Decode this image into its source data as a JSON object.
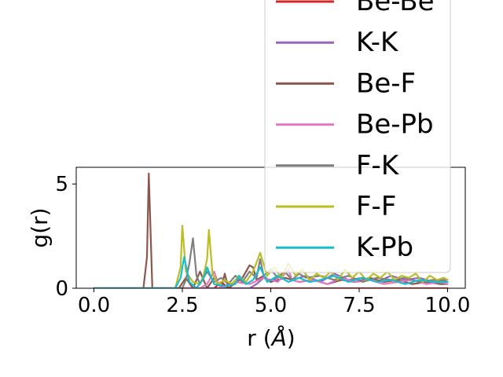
{
  "chart_data": {
    "type": "line",
    "xlabel": "r (Å)",
    "xlabel_main": "r (",
    "xlabel_unit": "Å",
    "xlabel_close": ")",
    "ylabel": "g(r)",
    "xlim": [
      -0.5,
      10.5
    ],
    "ylim": [
      0,
      5.8
    ],
    "x_ticks": [
      0.0,
      2.5,
      5.0,
      7.5,
      10.0
    ],
    "x_tick_labels": [
      "0.0",
      "2.5",
      "5.0",
      "7.5",
      "10.0"
    ],
    "y_ticks": [
      0,
      5
    ],
    "y_tick_labels": [
      "0",
      "5"
    ],
    "legend_position": "upper-right, overflowing above the axes",
    "series": [
      {
        "name": "Be-Be",
        "color": "#d62728",
        "x": [
          0,
          1.0,
          2.0,
          3.0,
          3.4,
          3.6,
          3.8,
          4.2,
          5.0,
          6.0,
          7.0,
          8.0,
          9.0,
          10.0
        ],
        "y": [
          0,
          0,
          0,
          0,
          0,
          0.3,
          0,
          0,
          0,
          0,
          0,
          0,
          0,
          0
        ]
      },
      {
        "name": "K-K",
        "color": "#9467bd",
        "x": [
          0,
          3.5,
          4.4,
          4.6,
          4.8,
          5.0,
          5.4,
          5.6,
          6.0,
          6.4,
          6.8,
          7.2,
          7.6,
          8.0,
          8.4,
          8.8,
          9.2,
          9.6,
          10.0
        ],
        "y": [
          0,
          0,
          0,
          0.2,
          0.5,
          0.3,
          0.8,
          0.4,
          0.6,
          0.3,
          0.7,
          0.4,
          0.5,
          0.3,
          0.6,
          0.4,
          0.5,
          0.3,
          0.4
        ]
      },
      {
        "name": "Be-F",
        "color": "#8c564b",
        "x": [
          0,
          1.4,
          1.5,
          1.55,
          1.65,
          2.4,
          2.6,
          2.8,
          3.0,
          3.2,
          3.4,
          3.6,
          3.7,
          3.8,
          4.2,
          4.4,
          4.5,
          4.6,
          4.8,
          5.0,
          5.4,
          5.8,
          6.2,
          6.6,
          7.0,
          7.4,
          7.8,
          8.2,
          8.6,
          9.0,
          9.4,
          9.8,
          10.0
        ],
        "y": [
          0,
          0,
          1.5,
          5.5,
          0,
          0,
          0.5,
          0,
          0.8,
          0,
          0.5,
          0,
          0.7,
          0,
          0.5,
          1.1,
          1.0,
          0.4,
          0.6,
          0.3,
          0.5,
          0.3,
          0.4,
          0.2,
          0.4,
          0.3,
          0.5,
          0.3,
          0.4,
          0.2,
          0.3,
          0.2,
          0.2
        ]
      },
      {
        "name": "Be-Pb",
        "color": "#e377c2",
        "x": [
          0,
          3.0,
          3.2,
          3.4,
          3.5,
          3.6,
          4.0,
          4.4,
          4.8,
          5.2,
          5.5,
          5.6,
          5.8,
          6.2,
          6.6,
          7.0,
          7.4,
          7.8,
          8.2,
          8.6,
          9.0,
          9.4,
          9.8,
          10.0
        ],
        "y": [
          0,
          0,
          0.2,
          0.8,
          0.3,
          0,
          0.3,
          0.2,
          0.5,
          0.3,
          0.9,
          0.4,
          0.3,
          0.4,
          0.2,
          0.5,
          0.3,
          0.4,
          0.2,
          0.3,
          0.4,
          0.2,
          0.3,
          0.2
        ]
      },
      {
        "name": "F-K",
        "color": "#7f7f7f",
        "x": [
          0,
          2.5,
          2.6,
          2.7,
          2.8,
          2.9,
          3.0,
          3.2,
          3.4,
          3.6,
          3.8,
          4.0,
          4.2,
          4.4,
          4.6,
          4.7,
          4.8,
          5.0,
          5.2,
          5.4,
          5.6,
          5.8,
          6.0,
          6.4,
          6.8,
          7.2,
          7.6,
          8.0,
          8.4,
          8.8,
          9.2,
          9.6,
          10.0
        ],
        "y": [
          0,
          0,
          0.4,
          1.2,
          2.4,
          0.6,
          0.2,
          0.8,
          0.3,
          0.5,
          0.2,
          0.6,
          0.3,
          0.8,
          0.5,
          1.4,
          0.6,
          0.9,
          0.5,
          0.8,
          0.4,
          0.7,
          0.5,
          0.6,
          0.4,
          0.6,
          0.3,
          0.5,
          0.4,
          0.5,
          0.3,
          0.4,
          0.4
        ]
      },
      {
        "name": "F-F",
        "color": "#bcbd22",
        "x": [
          0,
          2.3,
          2.45,
          2.5,
          2.6,
          2.8,
          3.0,
          3.1,
          3.2,
          3.25,
          3.35,
          3.5,
          3.7,
          3.9,
          4.1,
          4.3,
          4.5,
          4.7,
          4.9,
          5.1,
          5.3,
          5.5,
          5.7,
          5.9,
          6.1,
          6.3,
          6.5,
          6.7,
          6.9,
          7.1,
          7.3,
          7.5,
          7.7,
          7.9,
          8.1,
          8.3,
          8.5,
          8.7,
          8.9,
          9.1,
          9.3,
          9.5,
          9.7,
          9.9,
          10.0
        ],
        "y": [
          0,
          0,
          1.0,
          3.0,
          0.8,
          0.3,
          0.2,
          0.6,
          1.4,
          2.8,
          0.7,
          0.2,
          0.4,
          0.2,
          0.6,
          0.3,
          0.8,
          1.7,
          0.6,
          1.0,
          0.5,
          1.2,
          0.6,
          0.9,
          0.4,
          0.7,
          0.5,
          0.8,
          0.4,
          0.9,
          0.5,
          0.8,
          0.4,
          0.7,
          0.5,
          0.8,
          0.4,
          0.6,
          0.5,
          0.7,
          0.3,
          0.6,
          0.4,
          0.5,
          0.4
        ]
      },
      {
        "name": "K-Pb",
        "color": "#17becf",
        "x": [
          0,
          2.3,
          2.45,
          2.55,
          2.7,
          2.9,
          3.1,
          3.2,
          3.4,
          3.7,
          4.0,
          4.1,
          4.3,
          4.5,
          4.7,
          4.9,
          5.2,
          5.5,
          5.8,
          6.1,
          6.4,
          6.8,
          7.2,
          7.6,
          8.0,
          8.4,
          8.8,
          9.2,
          9.6,
          10.0
        ],
        "y": [
          0,
          0,
          0.5,
          1.5,
          0.3,
          0,
          0.5,
          1.0,
          0.2,
          0.1,
          0.2,
          0.6,
          0.2,
          0.4,
          1.0,
          0.3,
          0.6,
          0.3,
          0.5,
          0.3,
          0.4,
          0.6,
          0.3,
          0.5,
          0.3,
          0.4,
          0.2,
          0.4,
          0.3,
          0.3
        ]
      }
    ]
  }
}
